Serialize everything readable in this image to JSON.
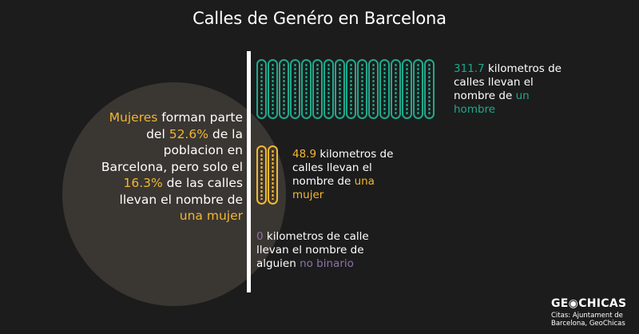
{
  "title": "Calles de Genéro en Barcelona",
  "circle": {
    "word_women": "Mujeres",
    "text1": " forman parte del ",
    "pct_population": "52.6%",
    "text2": " de la poblacion en Barcelona, pero solo el ",
    "pct_streets": "16.3%",
    "text3": " de las calles llevan el nombre de ",
    "woman_phrase": "una mujer"
  },
  "stats": {
    "men": {
      "value": "311.7",
      "text": " kilometros de calles llevan el nombre de ",
      "highlight": "un hombre"
    },
    "women": {
      "value": "48.9",
      "text": " kilometros de calles llevan el nombre de ",
      "highlight": "una mujer"
    },
    "nonbinary": {
      "value": "0",
      "text": " kilometros de calle llevan el nombre de alguien ",
      "highlight": "no binario"
    }
  },
  "logo": {
    "name_part1": "GE",
    "name_part2": "CHICAS"
  },
  "citation": "Citas: Ajuntament de Barcelona, GeoChicas",
  "colors": {
    "men": "#1fa98c",
    "women": "#f2b731",
    "nonbinary": "#8e72a8",
    "circle": "#3a3632",
    "background": "#1c1c1c"
  },
  "chart_data": {
    "type": "bar",
    "title": "Calles de Genéro en Barcelona",
    "categories": [
      "un hombre",
      "una mujer",
      "no binario"
    ],
    "values": [
      311.7,
      48.9,
      0
    ],
    "units": "kilometros",
    "icon_count": [
      16,
      2,
      0
    ]
  }
}
